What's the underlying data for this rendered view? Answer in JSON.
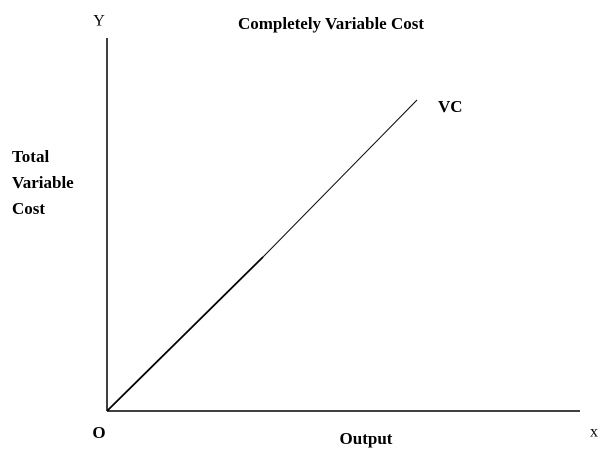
{
  "title": "Completely Variable Cost",
  "axes": {
    "y_letter": "Y",
    "x_letter": "x",
    "origin": "O"
  },
  "y_axis_title": [
    "Total",
    "Variable",
    "Cost"
  ],
  "x_axis_title": "Output",
  "curve_label": "VC"
}
